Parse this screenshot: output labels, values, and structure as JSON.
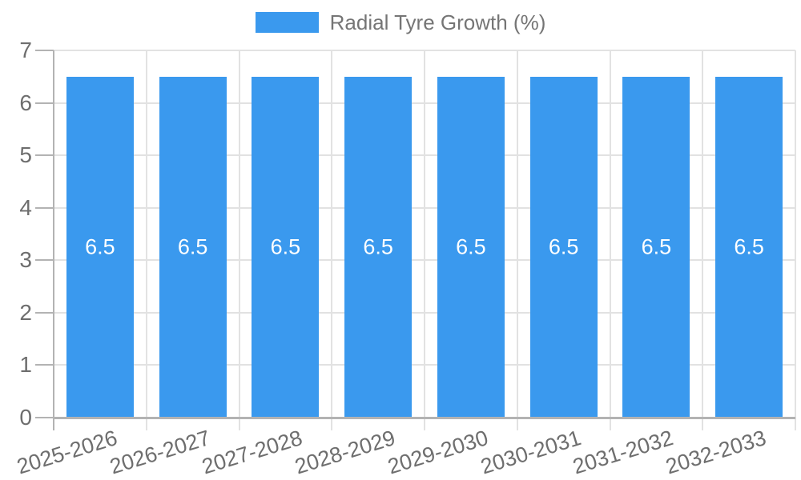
{
  "legend": {
    "label": "Radial Tyre Growth (%)"
  },
  "colors": {
    "bar": "#3A99EE",
    "bar_value_text": "#FFFFFF",
    "axis_label_text": "#6E6E6E",
    "legend_text": "#757575",
    "gridline": "#E2E2E2",
    "axis_line": "#B3B3B3",
    "background": "#FFFFFF"
  },
  "chart_data": {
    "type": "bar",
    "title": "Radial Tyre Growth (%)",
    "categories": [
      "2025-2026",
      "2026-2027",
      "2027-2028",
      "2028-2029",
      "2029-2030",
      "2030-2031",
      "2031-2032",
      "2032-2033"
    ],
    "series": [
      {
        "name": "Radial Tyre Growth (%)",
        "values": [
          6.5,
          6.5,
          6.5,
          6.5,
          6.5,
          6.5,
          6.5,
          6.5
        ]
      }
    ],
    "bar_value_labels": [
      "6.5",
      "6.5",
      "6.5",
      "6.5",
      "6.5",
      "6.5",
      "6.5",
      "6.5"
    ],
    "xlabel": "",
    "ylabel": "",
    "ylim": [
      0,
      7
    ],
    "yticks": [
      "0",
      "1",
      "2",
      "3",
      "4",
      "5",
      "6",
      "7"
    ],
    "grid": true,
    "legend_position": "top"
  }
}
